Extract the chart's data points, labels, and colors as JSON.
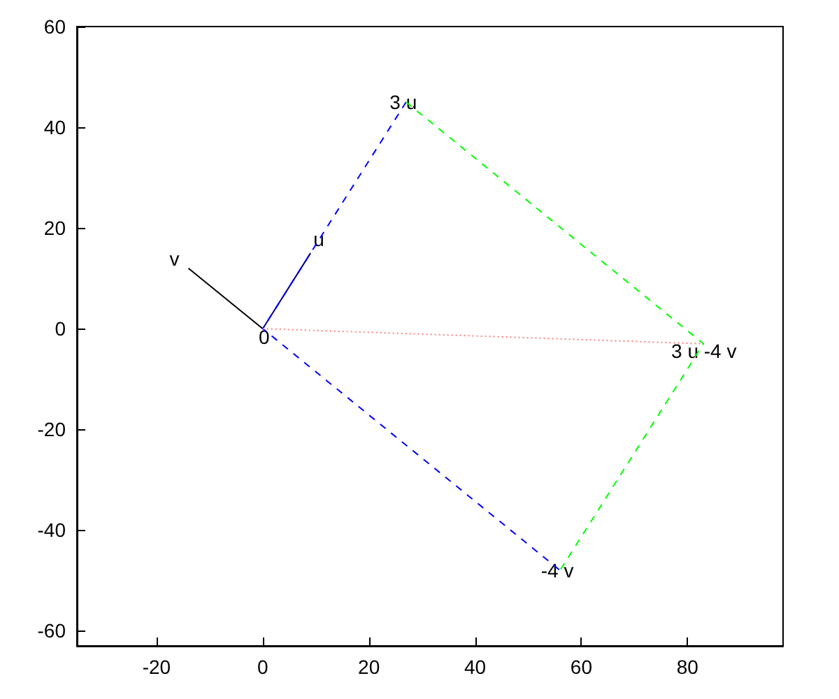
{
  "chart_data": {
    "type": "line",
    "xlim": [
      -35,
      98
    ],
    "ylim": [
      -63,
      60
    ],
    "xticks": [
      -20,
      0,
      20,
      40,
      60,
      80
    ],
    "yticks": [
      -60,
      -40,
      -20,
      0,
      20,
      40,
      60
    ],
    "grid": false,
    "marker": "none",
    "series": [
      {
        "x": [
          0,
          9
        ],
        "values": [
          0,
          15
        ],
        "color": "#000080",
        "line_style": "solid"
      },
      {
        "x": [
          0,
          -14
        ],
        "values": [
          0,
          12
        ],
        "color": "#000000",
        "line_style": "solid"
      },
      {
        "x": [
          27,
          0,
          56
        ],
        "values": [
          45,
          0,
          -48
        ],
        "color": "#0000ff",
        "line_style": "dashed"
      },
      {
        "x": [
          27,
          83,
          56
        ],
        "values": [
          45,
          -3,
          -48
        ],
        "color": "#00ff00",
        "line_style": "dashed"
      },
      {
        "x": [
          0,
          83
        ],
        "values": [
          0,
          -3
        ],
        "color": "#ff8080",
        "line_style": "dotted"
      }
    ],
    "annotations": [
      {
        "text": "0",
        "x": 0,
        "y": 0
      },
      {
        "text": "u",
        "x": 9,
        "y": 15
      },
      {
        "text": "v",
        "x": -14,
        "y": 12
      },
      {
        "text": "3 u",
        "x": 27,
        "y": 45
      },
      {
        "text": "-4 v",
        "x": 56,
        "y": -48
      },
      {
        "text": "3 u -4 v",
        "x": 83,
        "y": -3
      }
    ]
  }
}
